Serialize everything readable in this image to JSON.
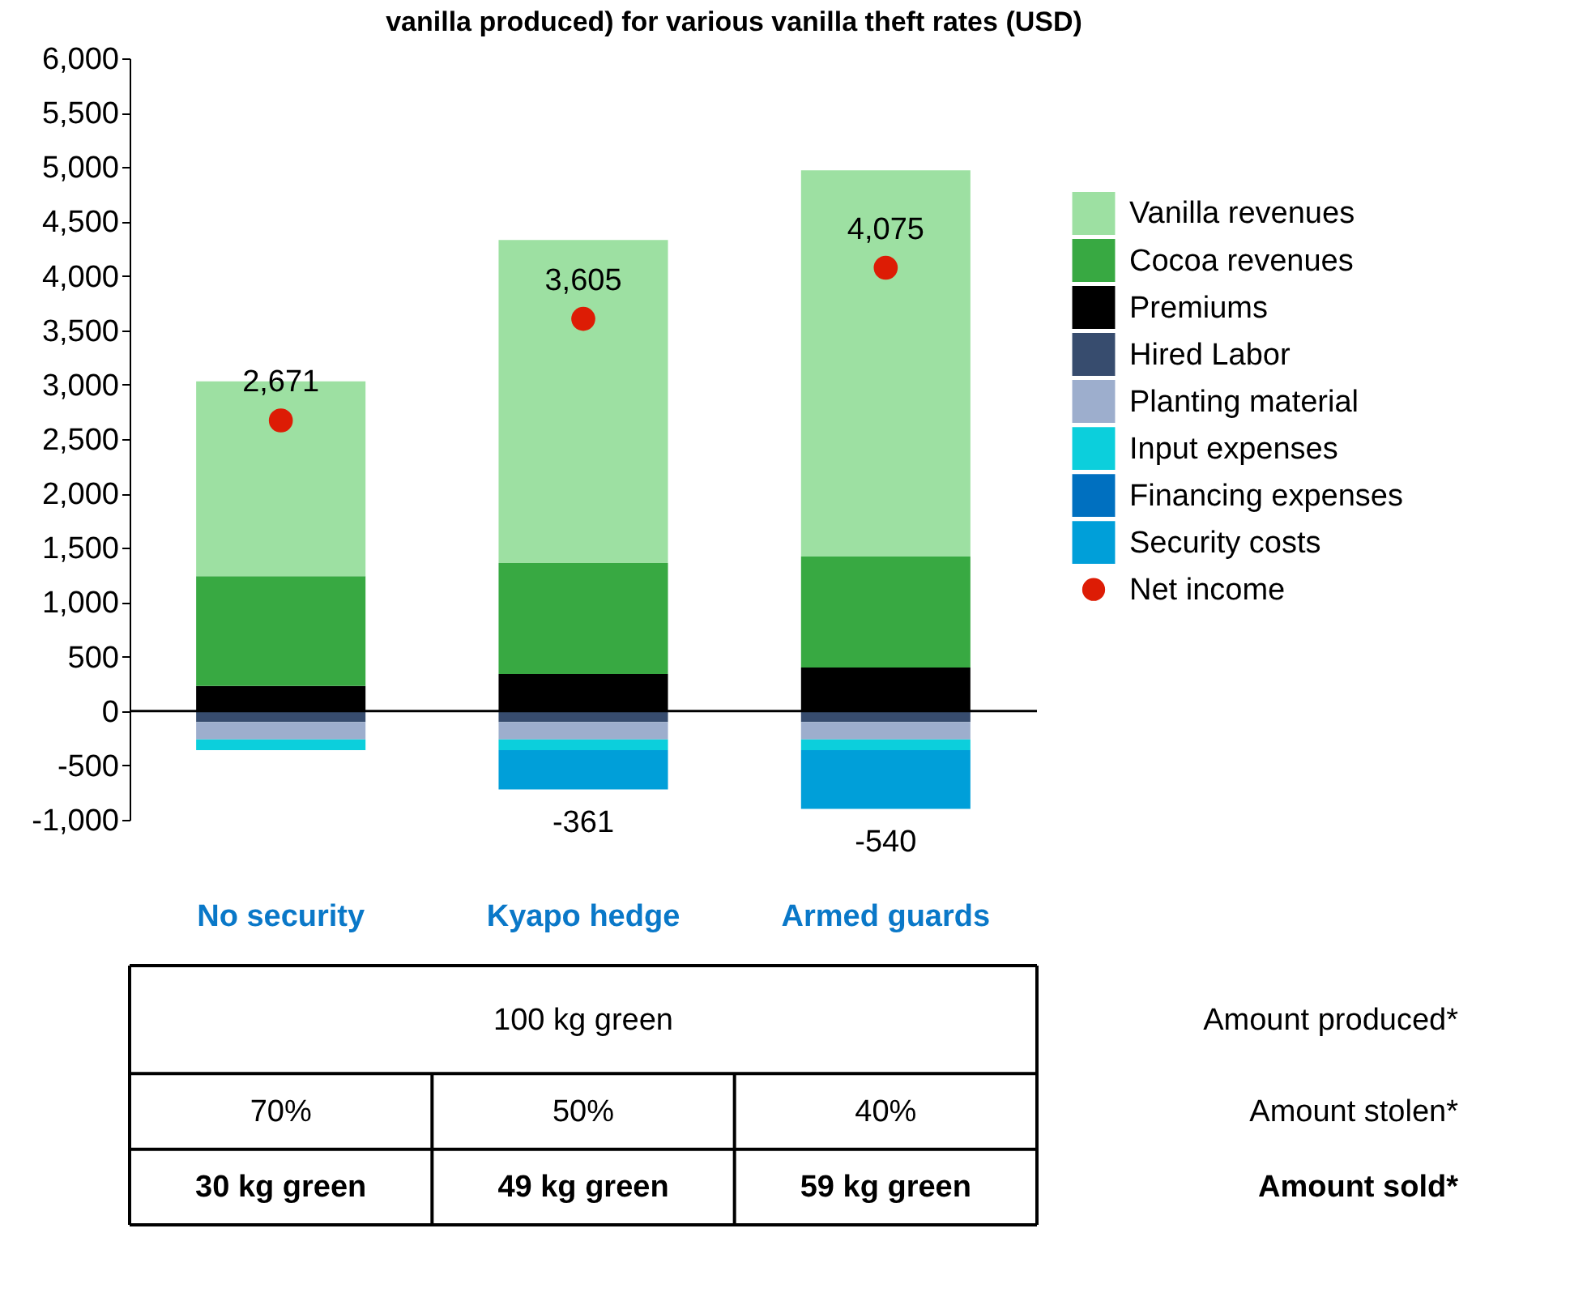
{
  "chart_data": {
    "type": "bar",
    "title": "vanilla produced) for various vanilla theft rates (USD)",
    "categories": [
      "No security",
      "Kyapo hedge",
      "Armed guards"
    ],
    "stacked": true,
    "ylim": [
      -1000,
      6000
    ],
    "yticks": [
      {
        "value": -1000,
        "label": "-1,000"
      },
      {
        "value": -500,
        "label": "-500"
      },
      0,
      500,
      {
        "value": 1000,
        "label": "1,000"
      },
      {
        "value": 1500,
        "label": "1,500"
      },
      {
        "value": 2000,
        "label": "2,000"
      },
      {
        "value": 2500,
        "label": "2,500"
      },
      {
        "value": 3000,
        "label": "3,000"
      },
      {
        "value": 3500,
        "label": "3,500"
      },
      {
        "value": 4000,
        "label": "4,000"
      },
      {
        "value": 4500,
        "label": "4,500"
      },
      {
        "value": 5000,
        "label": "5,000"
      },
      {
        "value": 5500,
        "label": "5,500"
      },
      {
        "value": 6000,
        "label": "6,000"
      }
    ],
    "grid": false,
    "legend": "right",
    "ref_lines": [
      {
        "axis": "y",
        "value": 0,
        "color": "#000000"
      }
    ],
    "series": [
      {
        "name": "Premiums",
        "color": "#000000",
        "values": [
          230,
          340,
          400
        ]
      },
      {
        "name": "Cocoa revenues",
        "color": "#38a942",
        "values": [
          1010,
          1020,
          1020
        ]
      },
      {
        "name": "Vanilla revenues",
        "color": "#9de0a2",
        "values": [
          1790,
          2970,
          3550
        ]
      },
      {
        "name": "Hired Labor",
        "color": "#374c6e",
        "values": [
          -100,
          -100,
          -100
        ]
      },
      {
        "name": "Planting material",
        "color": "#9daecd",
        "values": [
          -160,
          -160,
          -160
        ]
      },
      {
        "name": "Input expenses",
        "color": "#0ccfdc",
        "values": [
          -100,
          -100,
          -100
        ]
      },
      {
        "name": "Financing expenses",
        "color": "#0070c0",
        "values": [
          null,
          null,
          null
        ]
      },
      {
        "name": "Security costs",
        "color": "#009fd9",
        "values": [
          0,
          -361,
          -540
        ],
        "value_labels": [
          null,
          "-361",
          "-540"
        ]
      },
      {
        "name": "Net income",
        "type": "scatter",
        "marker": "circle",
        "color": "#dd1c05",
        "values": [
          2671,
          3605,
          4075
        ],
        "value_labels": [
          "2,671",
          "3,605",
          "4,075"
        ]
      }
    ],
    "annotations": [
      "100 kg green",
      "Amount produced*",
      "70%",
      "50%",
      "40%",
      "Amount stolen*",
      "30 kg green",
      "49 kg green",
      "59 kg green",
      "Amount sold*"
    ]
  }
}
